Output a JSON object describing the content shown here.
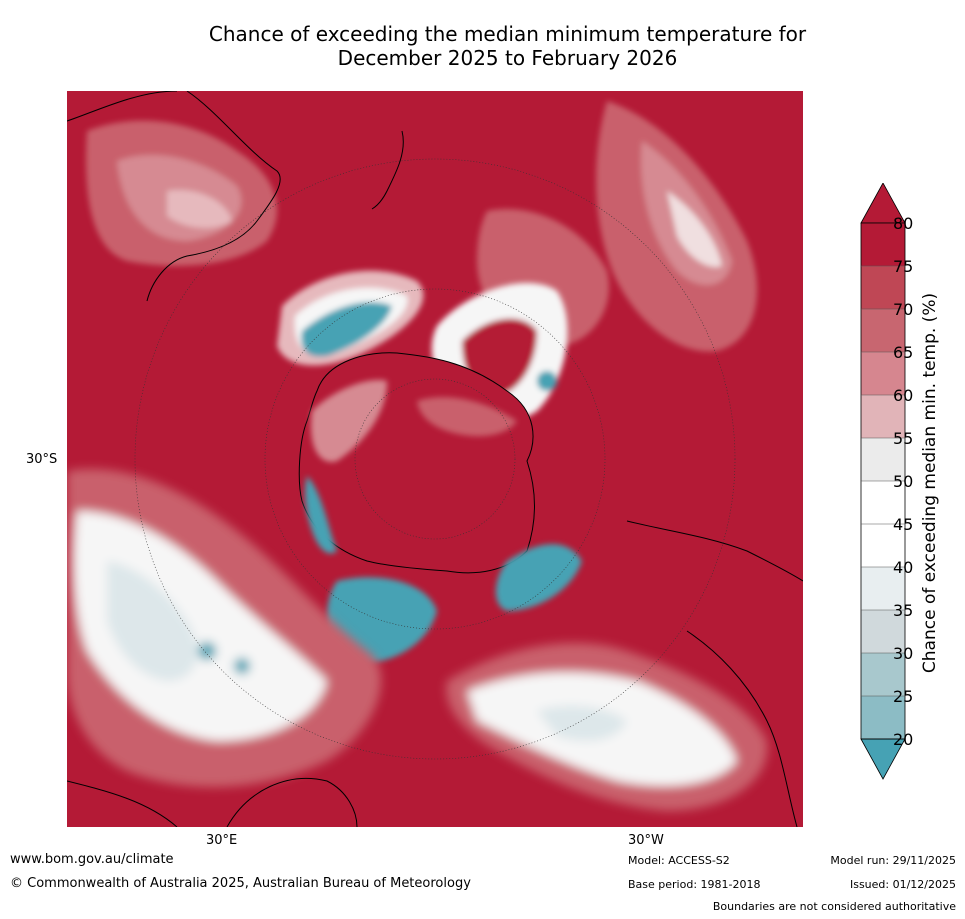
{
  "title": {
    "line1": "Chance of exceeding the median minimum temperature for",
    "line2": "December 2025 to February 2026"
  },
  "map": {
    "projection": "south-polar stereographic",
    "lat_label_left": "30°S",
    "lon_label_bottom_left": "30°E",
    "lon_label_bottom_right": "30°W",
    "colors": {
      "ocean_high": "#b41a36",
      "pink_dark": "#c9606c",
      "pink_mid": "#d68a92",
      "pink_light": "#e6b9bd",
      "white": "#f6f6f6",
      "pale_blue": "#dde7ea",
      "teal": "#46a2b4",
      "coast": "#000000"
    }
  },
  "colorbar": {
    "title": "Chance of exceeding median min. temp. (%)",
    "ticks": [
      "80",
      "75",
      "70",
      "65",
      "60",
      "55",
      "50",
      "45",
      "40",
      "35",
      "30",
      "25",
      "20"
    ],
    "colors": [
      "#46a2b4",
      "#6eadb8",
      "#8cbcc5",
      "#a8c8cd",
      "#d0d9dc",
      "#e8eef0",
      "#ffffff",
      "#ffffff",
      "#ebebeb",
      "#e1b4b8",
      "#d6868f",
      "#c86670",
      "#bf4755",
      "#b41a36"
    ]
  },
  "footer": {
    "url": "www.bom.gov.au/climate",
    "copyright": "© Commonwealth of Australia 2025, Australian Bureau of Meteorology",
    "model": "Model: ACCESS-S2",
    "base_period": "Base period: 1981-2018",
    "model_run": "Model run: 29/11/2025",
    "issued": "Issued: 01/12/2025",
    "disclaimer": "Boundaries are not considered authoritative"
  }
}
